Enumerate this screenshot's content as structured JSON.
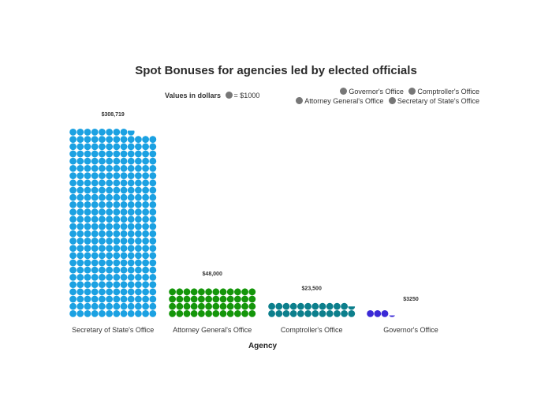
{
  "chart_data": {
    "type": "waffle",
    "title": "Spot Bonuses for agencies led by elected officials",
    "scale_label": "Values in dollars",
    "unit_note": "= $1000",
    "unit_value": 1000,
    "xlabel": "Agency",
    "ylabel": "",
    "legend_position": "top-right",
    "categories": [
      "Secretary of State's Office",
      "Attorney General's Office",
      "Comptroller's Office",
      "Governor's Office"
    ],
    "values": [
      308719,
      48000,
      23500,
      3250
    ],
    "value_labels": [
      "$308,719",
      "$48,000",
      "$23,500",
      "$3250"
    ],
    "colors": [
      "#1ba1e2",
      "#14960a",
      "#0c7f8c",
      "#3b2ad6"
    ],
    "legend": [
      "Governor's Office",
      "Comptroller's Office",
      "Attorney General's Office",
      "Secretary of State's Office"
    ]
  }
}
